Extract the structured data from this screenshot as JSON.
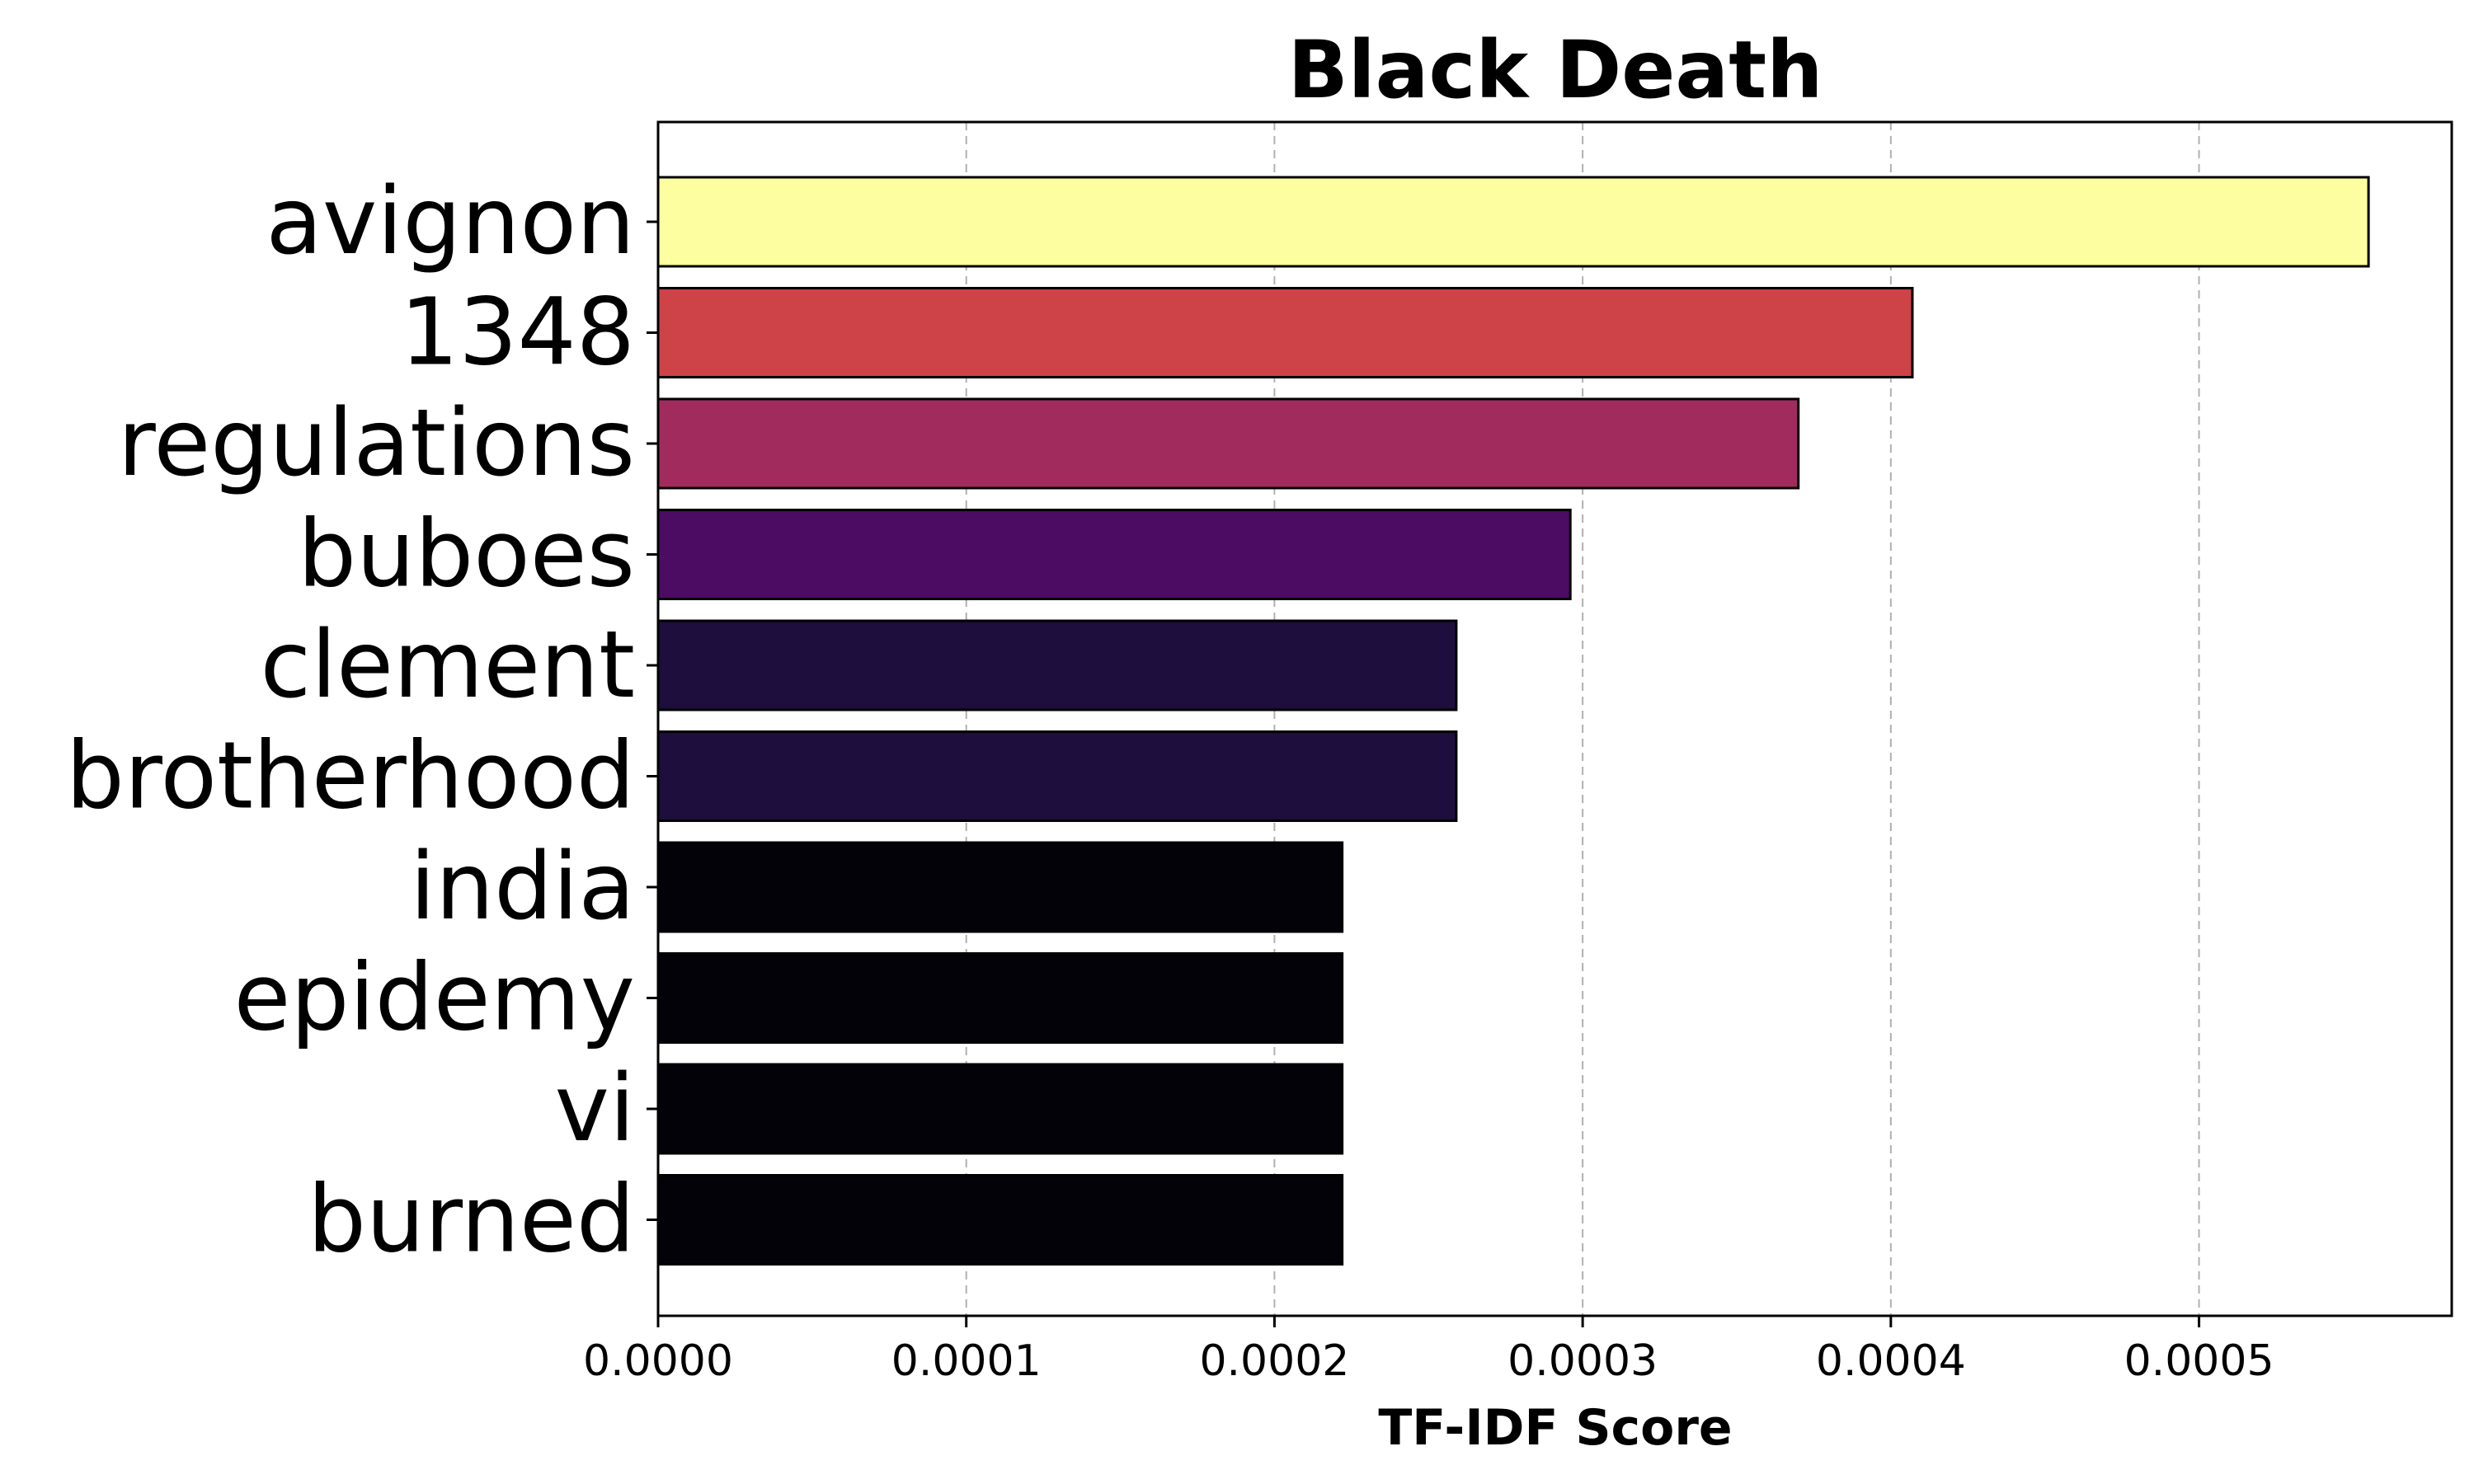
{
  "chart_data": {
    "type": "bar",
    "orientation": "horizontal",
    "title": "Black Death",
    "xlabel": "TF-IDF Score",
    "ylabel": "",
    "categories": [
      "avignon",
      "1348",
      "regulations",
      "buboes",
      "clement",
      "brotherhood",
      "india",
      "epidemy",
      "vi",
      "burned"
    ],
    "values": [
      0.000555,
      0.000407,
      0.00037,
      0.000296,
      0.000259,
      0.000259,
      0.000222,
      0.000222,
      0.000222,
      0.000222
    ],
    "colors": [
      "#fcfe9f",
      "#cd4347",
      "#a22b5e",
      "#4c0c63",
      "#1d0e3d",
      "#1d0e3d",
      "#020208",
      "#020208",
      "#020208",
      "#020208"
    ],
    "xlim": [
      0,
      0.000582
    ],
    "xticks": [
      "0.0000",
      "0.0001",
      "0.0002",
      "0.0003",
      "0.0004",
      "0.0005"
    ],
    "xtick_values": [
      0,
      0.0001,
      0.0002,
      0.0003,
      0.0004,
      0.0005
    ],
    "grid": "x-dashed",
    "legend": "none"
  }
}
